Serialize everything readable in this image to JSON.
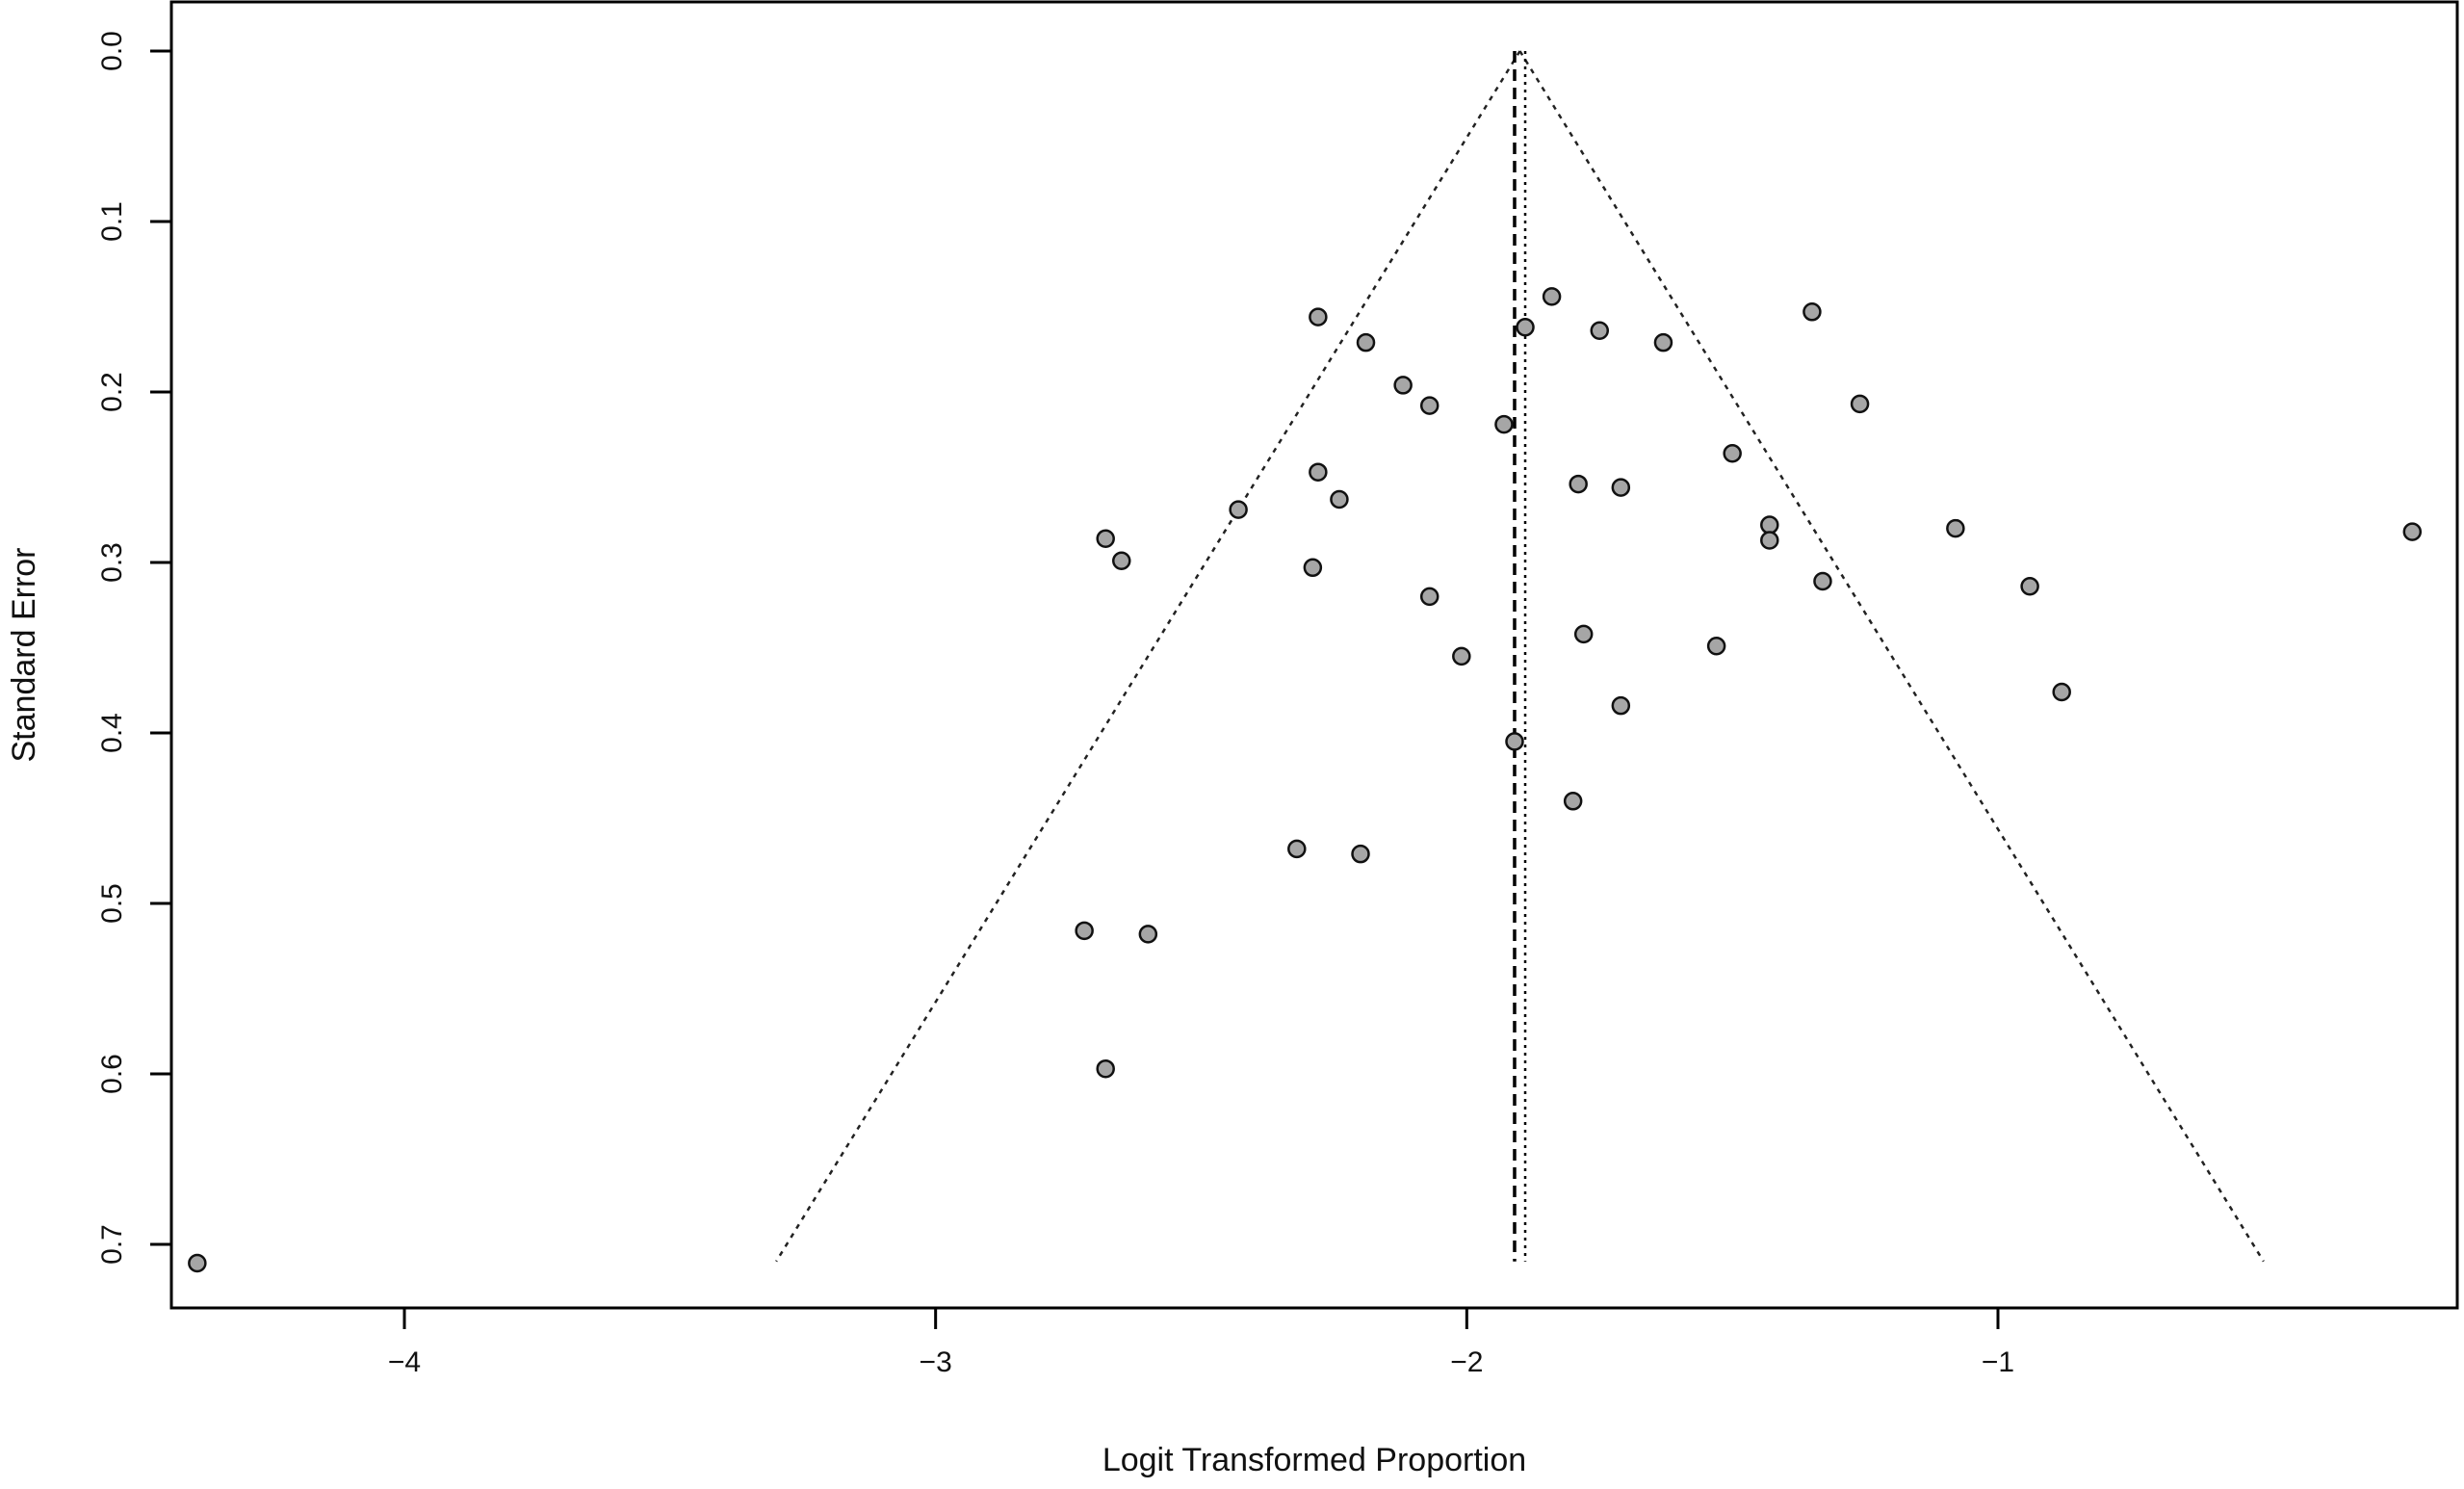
{
  "chart_data": {
    "type": "scatter",
    "title": "",
    "xlabel": "Logit Transformed Proportion",
    "ylabel": "Standard Error",
    "xlim": [
      -4.44,
      -0.12
    ],
    "ylim": [
      0.0,
      0.74
    ],
    "y_reversed": true,
    "x_ticks": [
      -4,
      -3,
      -2,
      -1
    ],
    "x_tick_labels": [
      "−4",
      "−3",
      "−2",
      "−1"
    ],
    "y_ticks": [
      0.0,
      0.1,
      0.2,
      0.3,
      0.4,
      0.5,
      0.6,
      0.7
    ],
    "y_tick_labels": [
      "0.0",
      "0.1",
      "0.2",
      "0.3",
      "0.4",
      "0.5",
      "0.6",
      "0.7"
    ],
    "grid": false,
    "legend": "none",
    "funnel": {
      "apex": [
        -1.9,
        0.0
      ],
      "base_left": [
        -3.3,
        0.71
      ],
      "base_right": [
        -0.5,
        0.71
      ],
      "line_style": "dotted"
    },
    "reference_lines": [
      {
        "x": -1.91,
        "ymax": 0.71,
        "style": "dashed"
      },
      {
        "x": -1.89,
        "ymax": 0.71,
        "style": "dotted"
      }
    ],
    "points": [
      {
        "x": -4.39,
        "y": 0.711
      },
      {
        "x": -2.28,
        "y": 0.156
      },
      {
        "x": -2.19,
        "y": 0.171
      },
      {
        "x": -2.12,
        "y": 0.196
      },
      {
        "x": -2.07,
        "y": 0.208
      },
      {
        "x": -1.93,
        "y": 0.219
      },
      {
        "x": -1.89,
        "y": 0.162
      },
      {
        "x": -1.84,
        "y": 0.144
      },
      {
        "x": -1.75,
        "y": 0.164
      },
      {
        "x": -1.63,
        "y": 0.171
      },
      {
        "x": -1.35,
        "y": 0.153
      },
      {
        "x": -1.26,
        "y": 0.207
      },
      {
        "x": -1.5,
        "y": 0.236
      },
      {
        "x": -2.28,
        "y": 0.247
      },
      {
        "x": -2.24,
        "y": 0.263
      },
      {
        "x": -2.43,
        "y": 0.269
      },
      {
        "x": -1.79,
        "y": 0.254
      },
      {
        "x": -1.71,
        "y": 0.256
      },
      {
        "x": -1.43,
        "y": 0.278
      },
      {
        "x": -1.43,
        "y": 0.287
      },
      {
        "x": -1.08,
        "y": 0.28
      },
      {
        "x": -0.22,
        "y": 0.282
      },
      {
        "x": -2.68,
        "y": 0.286
      },
      {
        "x": -2.65,
        "y": 0.299
      },
      {
        "x": -2.29,
        "y": 0.303
      },
      {
        "x": -1.33,
        "y": 0.311
      },
      {
        "x": -0.94,
        "y": 0.314
      },
      {
        "x": -2.07,
        "y": 0.32
      },
      {
        "x": -1.78,
        "y": 0.342
      },
      {
        "x": -1.53,
        "y": 0.349
      },
      {
        "x": -2.01,
        "y": 0.355
      },
      {
        "x": -0.88,
        "y": 0.376
      },
      {
        "x": -1.71,
        "y": 0.384
      },
      {
        "x": -1.91,
        "y": 0.405
      },
      {
        "x": -1.8,
        "y": 0.44
      },
      {
        "x": -2.32,
        "y": 0.468
      },
      {
        "x": -2.2,
        "y": 0.471
      },
      {
        "x": -2.72,
        "y": 0.516
      },
      {
        "x": -2.6,
        "y": 0.518
      },
      {
        "x": -2.68,
        "y": 0.597
      }
    ]
  }
}
